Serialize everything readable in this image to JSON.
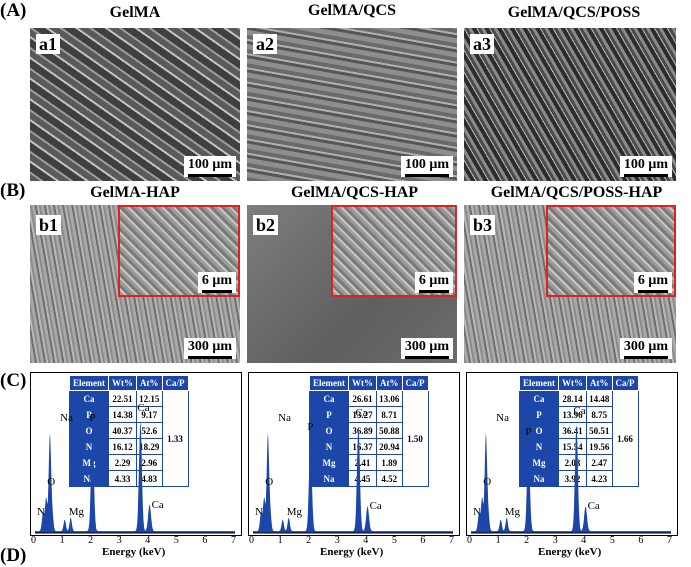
{
  "section_A": {
    "label": "(A)",
    "panels": [
      {
        "tag": "a1",
        "title": "GelMA",
        "scale": "100 μm"
      },
      {
        "tag": "a2",
        "title": "GelMA/QCS",
        "scale": "100 μm"
      },
      {
        "tag": "a3",
        "title": "GelMA/QCS/POSS",
        "scale": "100 μm"
      }
    ]
  },
  "section_B": {
    "label": "(B)",
    "panels": [
      {
        "tag": "b1",
        "title": "GelMA-HAP",
        "scale": "300 μm",
        "inset_scale": "6 μm"
      },
      {
        "tag": "b2",
        "title": "GelMA/QCS-HAP",
        "scale": "300 μm",
        "inset_scale": "6 μm"
      },
      {
        "tag": "b3",
        "title": "GelMA/QCS/POSS-HAP",
        "scale": "300 μm",
        "inset_scale": "6 μm"
      }
    ]
  },
  "section_C": {
    "label": "(C)",
    "colors": {
      "spectrum": "#1c47a8",
      "table_header": "#1c47a8"
    },
    "headers": [
      "Element",
      "Wt%",
      "At%",
      "Ca/P"
    ],
    "peaks": [
      "N",
      "O",
      "Na",
      "Mg",
      "P",
      "Ca",
      "Ca"
    ],
    "tables": [
      {
        "rows": [
          [
            "Ca",
            "22.51",
            "12.15"
          ],
          [
            "P",
            "14.38",
            "9.17"
          ],
          [
            "O",
            "40.37",
            "52.6"
          ],
          [
            "N",
            "16.12",
            "18.29"
          ],
          [
            "Mg",
            "2.29",
            "2.96"
          ],
          [
            "Na",
            "4.33",
            "4.83"
          ]
        ],
        "ratio": "1.33"
      },
      {
        "rows": [
          [
            "Ca",
            "26.61",
            "13.06"
          ],
          [
            "P",
            "13.27",
            "8.71"
          ],
          [
            "O",
            "36.89",
            "50.88"
          ],
          [
            "N",
            "16.37",
            "20.94"
          ],
          [
            "Mg",
            "2.41",
            "1.89"
          ],
          [
            "Na",
            "4.45",
            "4.52"
          ]
        ],
        "ratio": "1.50"
      },
      {
        "rows": [
          [
            "Ca",
            "28.14",
            "14.48"
          ],
          [
            "P",
            "13.96",
            "8.75"
          ],
          [
            "O",
            "36.41",
            "50.51"
          ],
          [
            "N",
            "15.54",
            "19.56"
          ],
          [
            "Mg",
            "2.03",
            "2.47"
          ],
          [
            "Na",
            "3.92",
            "4.23"
          ]
        ],
        "ratio": "1.66"
      }
    ],
    "x_label": "Energy (keV)",
    "x_ticks": [
      "0",
      "1",
      "2",
      "3",
      "4",
      "5",
      "6",
      "7"
    ]
  },
  "section_D": {
    "label": "(D)"
  },
  "chart_data": [
    {
      "type": "line",
      "xlabel": "Energy (keV)",
      "xlim": [
        0,
        7
      ],
      "x": [
        0.28,
        0.39,
        0.52,
        0.6,
        1.04,
        1.25,
        2.01,
        3.69,
        4.01
      ],
      "values": [
        18,
        35,
        100,
        20,
        12,
        14,
        105,
        115,
        28
      ],
      "annotations": [
        "N",
        "O",
        "Na",
        "Mg",
        "P",
        "Ca",
        "Ca"
      ]
    },
    {
      "type": "line",
      "xlabel": "Energy (keV)",
      "xlim": [
        0,
        7
      ],
      "x": [
        0.28,
        0.39,
        0.52,
        0.6,
        1.04,
        1.25,
        2.01,
        3.69,
        4.01
      ],
      "values": [
        18,
        35,
        100,
        20,
        12,
        14,
        95,
        110,
        26
      ],
      "annotations": [
        "N",
        "O",
        "Na",
        "Mg",
        "P",
        "Ca",
        "Ca"
      ]
    },
    {
      "type": "line",
      "xlabel": "Energy (keV)",
      "xlim": [
        0,
        7
      ],
      "x": [
        0.28,
        0.39,
        0.52,
        0.6,
        1.04,
        1.25,
        2.01,
        3.69,
        4.01
      ],
      "values": [
        18,
        35,
        100,
        20,
        12,
        14,
        90,
        112,
        26
      ],
      "annotations": [
        "N",
        "O",
        "Na",
        "Mg",
        "P",
        "Ca",
        "Ca"
      ]
    }
  ]
}
